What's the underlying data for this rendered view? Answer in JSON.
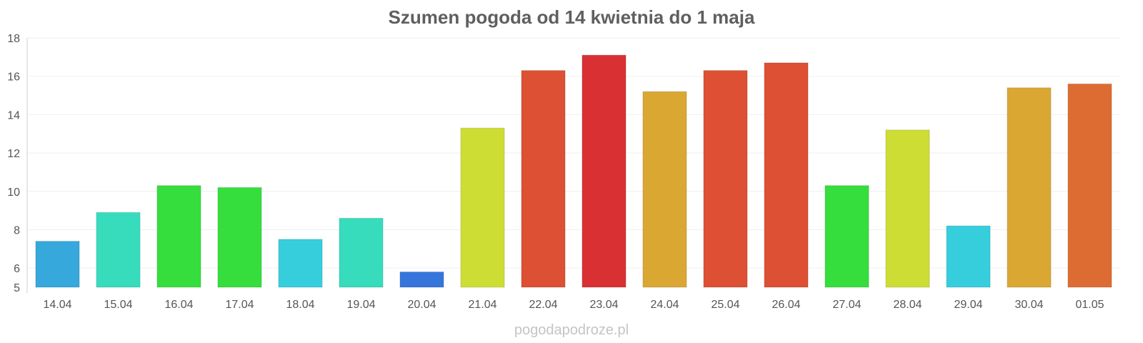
{
  "chart_data": {
    "type": "bar",
    "title": "Szumen pogoda od 14 kwietnia do 1 maja",
    "xlabel": "",
    "ylabel": "",
    "ylim": [
      5,
      18
    ],
    "yticks": [
      5,
      6,
      8,
      10,
      12,
      14,
      16,
      18
    ],
    "grid": true,
    "categories": [
      "14.04",
      "15.04",
      "16.04",
      "17.04",
      "18.04",
      "19.04",
      "20.04",
      "21.04",
      "22.04",
      "23.04",
      "24.04",
      "25.04",
      "26.04",
      "27.04",
      "28.04",
      "29.04",
      "30.04",
      "01.05"
    ],
    "values": [
      7.4,
      8.9,
      10.3,
      10.2,
      7.5,
      8.6,
      5.8,
      13.3,
      16.3,
      17.1,
      15.2,
      16.3,
      16.7,
      10.3,
      13.2,
      8.2,
      15.4,
      15.6
    ],
    "colors": [
      "#36a8db",
      "#36dcbc",
      "#35de3c",
      "#35de3c",
      "#36cedd",
      "#36dcbc",
      "#3675dc",
      "#cddd33",
      "#dd5033",
      "#d93133",
      "#dba733",
      "#dd5033",
      "#dd5033",
      "#35de3c",
      "#cddd33",
      "#36cedd",
      "#dba733",
      "#dd6c33"
    ]
  },
  "watermark": "pogodapodroze.pl"
}
